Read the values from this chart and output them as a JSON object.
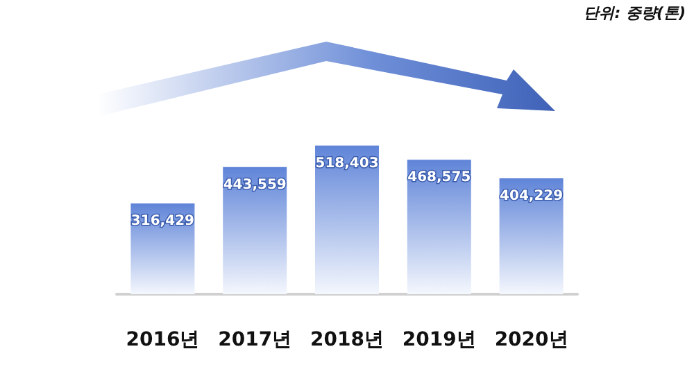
{
  "chart_data": {
    "type": "bar",
    "categories": [
      "2016년",
      "2017년",
      "2018년",
      "2019년",
      "2020년"
    ],
    "values": [
      316429,
      443559,
      518403,
      468575,
      404229
    ],
    "value_labels": [
      "316,429",
      "443,559",
      "518,403",
      "468,575",
      "404,229"
    ],
    "color": "#5f84d8",
    "annotations": [
      "단위: 중량(톤)"
    ]
  }
}
